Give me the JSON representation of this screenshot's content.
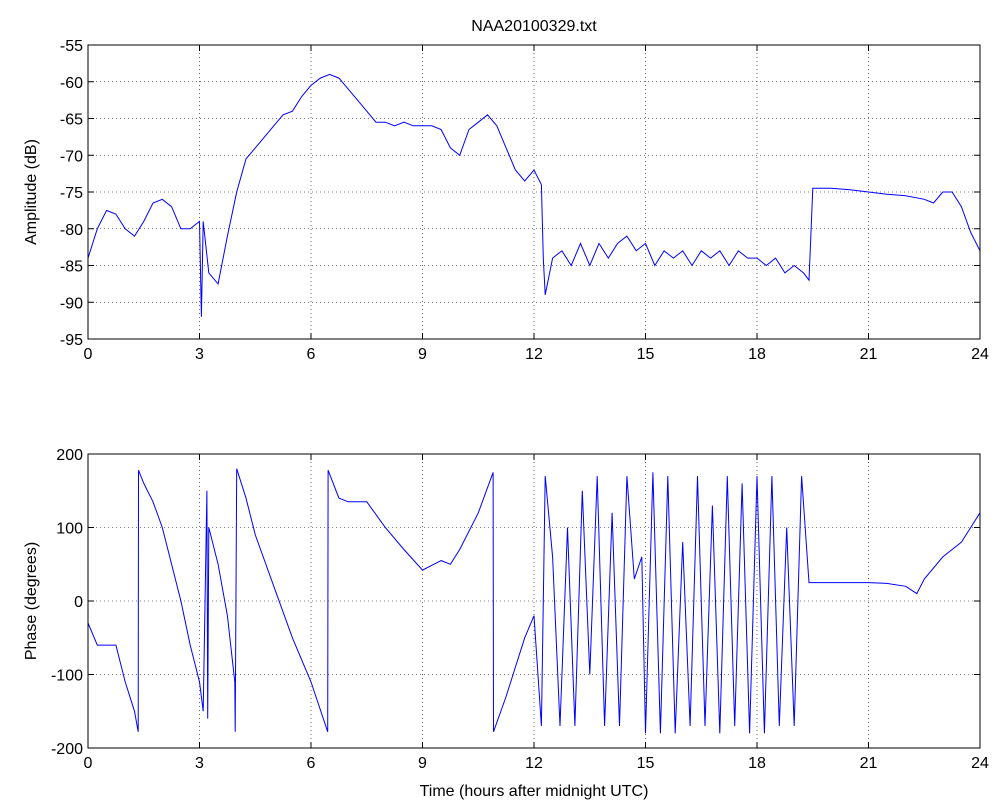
{
  "chart_data": [
    {
      "type": "line",
      "title": "NAA20100329.txt",
      "ylabel": "Amplitude (dB)",
      "grid": true,
      "xlim": [
        0,
        24
      ],
      "xticks": [
        0,
        3,
        6,
        9,
        12,
        15,
        18,
        21,
        24
      ],
      "ylim": [
        -95,
        -55
      ],
      "yticks": [
        -95,
        -90,
        -85,
        -80,
        -75,
        -70,
        -65,
        -60,
        -55
      ],
      "x": [
        0,
        0.25,
        0.5,
        0.75,
        1,
        1.25,
        1.5,
        1.75,
        2,
        2.25,
        2.5,
        2.75,
        3,
        3.05,
        3.1,
        3.25,
        3.5,
        3.75,
        4,
        4.25,
        4.5,
        4.75,
        5,
        5.25,
        5.5,
        5.75,
        6,
        6.25,
        6.5,
        6.75,
        7,
        7.25,
        7.5,
        7.75,
        8,
        8.25,
        8.5,
        8.75,
        9,
        9.25,
        9.5,
        9.75,
        10,
        10.25,
        10.5,
        10.75,
        11,
        11.25,
        11.5,
        11.75,
        12,
        12.2,
        12.25,
        12.3,
        12.5,
        12.75,
        13,
        13.25,
        13.5,
        13.75,
        14,
        14.25,
        14.5,
        14.75,
        15,
        15.25,
        15.5,
        15.75,
        16,
        16.25,
        16.5,
        16.75,
        17,
        17.25,
        17.5,
        17.75,
        18,
        18.25,
        18.5,
        18.75,
        19,
        19.25,
        19.4,
        19.5,
        19.75,
        20,
        20.5,
        21,
        21.5,
        22,
        22.5,
        22.75,
        23,
        23.25,
        23.5,
        23.75,
        24
      ],
      "series": [
        {
          "name": "Amplitude",
          "color": "#0000ff",
          "values": [
            -84,
            -80,
            -77.5,
            -78,
            -80,
            -81,
            -79,
            -76.5,
            -76,
            -77,
            -80,
            -80,
            -79,
            -92,
            -79,
            -86,
            -87.5,
            -81,
            -75,
            -70.5,
            -69,
            -67.5,
            -66,
            -64.5,
            -64,
            -62,
            -60.5,
            -59.5,
            -59,
            -59.5,
            -61,
            -62.5,
            -64,
            -65.5,
            -65.5,
            -66,
            -65.5,
            -66,
            -66,
            -66,
            -66.5,
            -69,
            -70,
            -66.5,
            -65.5,
            -64.5,
            -66,
            -69,
            -72,
            -73.5,
            -72,
            -74,
            -84,
            -89,
            -84,
            -83,
            -85,
            -82,
            -85,
            -82,
            -84,
            -82,
            -81,
            -83,
            -82,
            -85,
            -83,
            -84,
            -83,
            -85,
            -83,
            -84,
            -83,
            -85,
            -83,
            -84,
            -84,
            -85,
            -84,
            -86,
            -85,
            -86,
            -87,
            -74.5,
            -74.5,
            -74.5,
            -74.7,
            -75,
            -75.3,
            -75.5,
            -76,
            -76.5,
            -75,
            -75,
            -77,
            -80.5,
            -83
          ]
        }
      ]
    },
    {
      "type": "line",
      "xlabel": "Time (hours after midnight UTC)",
      "ylabel": "Phase (degrees)",
      "grid": true,
      "xlim": [
        0,
        24
      ],
      "xticks": [
        0,
        3,
        6,
        9,
        12,
        15,
        18,
        21,
        24
      ],
      "ylim": [
        -200,
        200
      ],
      "yticks": [
        -200,
        -100,
        0,
        100,
        200
      ],
      "x": [
        0,
        0.25,
        0.5,
        0.75,
        1,
        1.25,
        1.35,
        1.36,
        1.5,
        1.75,
        2,
        2.25,
        2.5,
        2.75,
        3,
        3.1,
        3.2,
        3.22,
        3.25,
        3.5,
        3.75,
        3.95,
        3.96,
        4,
        4.25,
        4.5,
        5,
        5.5,
        6,
        6.45,
        6.46,
        6.75,
        7,
        7.5,
        8,
        8.5,
        9,
        9.5,
        9.75,
        10,
        10.5,
        10.9,
        10.91,
        11.25,
        11.5,
        11.75,
        12,
        12.2,
        12.3,
        12.5,
        12.7,
        12.9,
        13.1,
        13.3,
        13.5,
        13.7,
        13.9,
        14.1,
        14.3,
        14.5,
        14.7,
        14.9,
        15,
        15.2,
        15.4,
        15.6,
        15.8,
        16,
        16.2,
        16.4,
        16.6,
        16.8,
        17,
        17.2,
        17.4,
        17.6,
        17.8,
        18,
        18.2,
        18.4,
        18.6,
        18.8,
        19,
        19.2,
        19.4,
        20,
        21,
        21.5,
        22,
        22.3,
        22.5,
        23,
        23.5,
        23.75,
        24
      ],
      "series": [
        {
          "name": "Phase",
          "color": "#0000ff",
          "values": [
            -30,
            -60,
            -60,
            -60,
            -110,
            -150,
            -178,
            178,
            160,
            135,
            100,
            50,
            0,
            -60,
            -110,
            -150,
            150,
            -160,
            100,
            50,
            -20,
            -110,
            -178,
            180,
            140,
            90,
            20,
            -50,
            -110,
            -178,
            178,
            140,
            135,
            135,
            100,
            70,
            42,
            55,
            50,
            70,
            120,
            175,
            -178,
            -130,
            -90,
            -50,
            -20,
            -170,
            170,
            60,
            -170,
            100,
            -170,
            150,
            -100,
            170,
            -170,
            120,
            -170,
            170,
            30,
            60,
            -180,
            175,
            -180,
            170,
            -180,
            80,
            -170,
            170,
            -170,
            130,
            -180,
            170,
            -170,
            160,
            -180,
            170,
            -180,
            170,
            -170,
            100,
            -170,
            170,
            25,
            25,
            25,
            24,
            20,
            10,
            30,
            60,
            80,
            100,
            120
          ]
        }
      ]
    }
  ]
}
